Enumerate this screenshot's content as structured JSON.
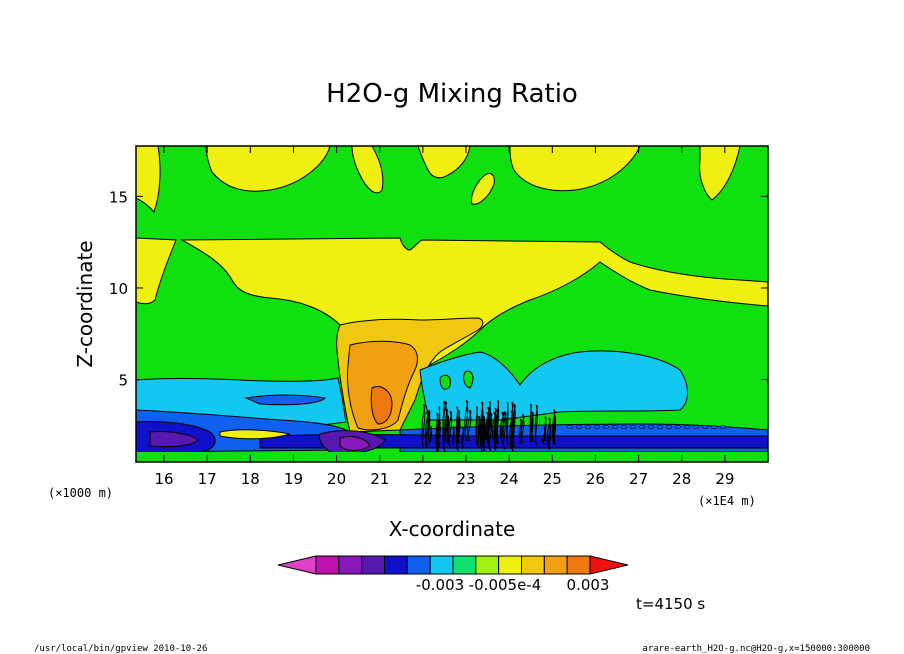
{
  "chart_data": {
    "type": "heatmap",
    "title": "H2O-g Mixing Ratio",
    "xlabel": "X-coordinate",
    "ylabel": "Z-coordinate",
    "x_unit": "(×1E4 m)",
    "y_unit": "(×1000 m)",
    "xlim": [
      15.35,
      30.0
    ],
    "ylim": [
      0.5,
      17.75
    ],
    "x_ticks": [
      16,
      17,
      18,
      19,
      20,
      21,
      22,
      23,
      24,
      25,
      26,
      27,
      28,
      29
    ],
    "y_ticks": [
      5,
      10,
      15
    ],
    "colorbar": {
      "colors": [
        "#e040c8",
        "#c010b0",
        "#8818b8",
        "#5818b0",
        "#1010c8",
        "#1060f0",
        "#10c8f0",
        "#10e070",
        "#a0f010",
        "#f0f010",
        "#f0c810",
        "#f0a010",
        "#f07810",
        "#f01010"
      ],
      "labels": [
        "-0.003",
        "-0.005e-4",
        "0.003"
      ]
    },
    "timestamp": "t=4150 s"
  },
  "footer": {
    "left": "/usr/local/bin/gpview   2010-10-26",
    "right": "arare-earth_H2O-g.nc@H2O-g,x=150000:300000"
  }
}
